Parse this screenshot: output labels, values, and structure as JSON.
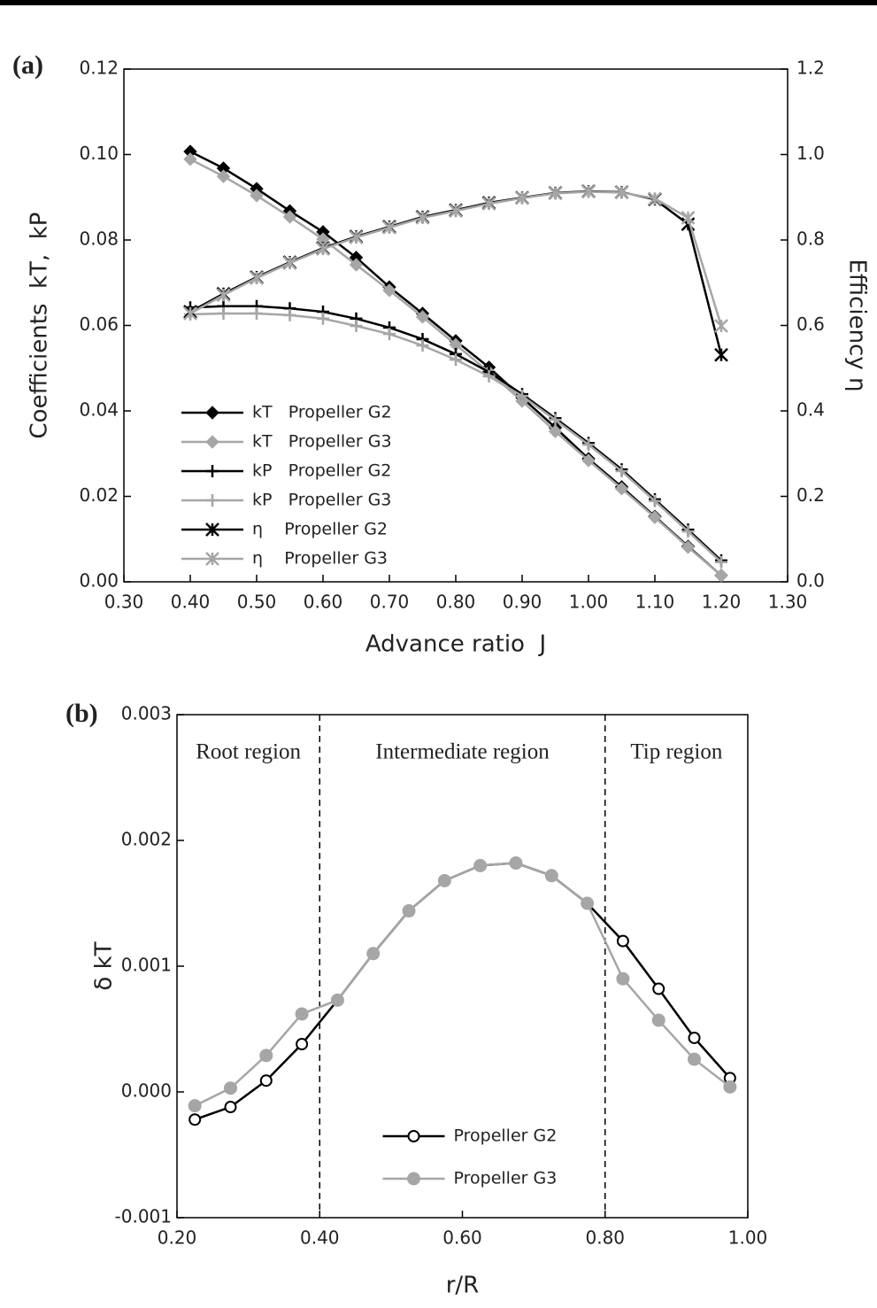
{
  "chart_data": [
    {
      "type": "line",
      "panel_label": "(a)",
      "x_label": "Advance ratio  J",
      "y_label": "Coefficients  kT,  kP",
      "y2_label": "Efficiency η",
      "x": [
        0.4,
        0.45,
        0.5,
        0.55,
        0.6,
        0.65,
        0.7,
        0.75,
        0.8,
        0.85,
        0.9,
        0.95,
        1.0,
        1.05,
        1.1,
        1.15,
        1.2
      ],
      "xlim": [
        0.3,
        1.3
      ],
      "xticks": [
        {
          "value": 0.3,
          "label": "0.30"
        },
        {
          "value": 0.4,
          "label": "0.40"
        },
        {
          "value": 0.5,
          "label": "0.50"
        },
        {
          "value": 0.6,
          "label": "0.60"
        },
        {
          "value": 0.7,
          "label": "0.70"
        },
        {
          "value": 0.8,
          "label": "0.80"
        },
        {
          "value": 0.9,
          "label": "0.90"
        },
        {
          "value": 1.0,
          "label": "1.00"
        },
        {
          "value": 1.1,
          "label": "1.10"
        },
        {
          "value": 1.2,
          "label": "1.20"
        },
        {
          "value": 1.3,
          "label": "1.30"
        }
      ],
      "ylim": [
        0,
        0.12
      ],
      "yticks": [
        {
          "value": 0,
          "label": "0.00"
        },
        0.02,
        0.04,
        0.06,
        0.08,
        {
          "value": 0.1,
          "label": "0.10"
        },
        0.12
      ],
      "y2lim": [
        0,
        1.2
      ],
      "y2ticks": [
        {
          "value": 0,
          "label": "0.0"
        },
        0.2,
        0.4,
        0.6,
        0.8,
        {
          "value": 1.0,
          "label": "1.0"
        },
        1.2
      ],
      "legend": "lower left",
      "series": [
        {
          "name": "kT   Propeller G2",
          "color": "#000000",
          "marker": "diamond",
          "values": [
            0.1007,
            0.0968,
            0.092,
            0.0868,
            0.0819,
            0.0759,
            0.069,
            0.0628,
            0.0564,
            0.0502,
            0.0431,
            0.0361,
            0.0288,
            0.0222,
            0.0153,
            0.0083,
            0.0015
          ]
        },
        {
          "name": "kT   Propeller G3",
          "color": "#a6a6a6",
          "marker": "diamond",
          "values": [
            0.0989,
            0.0949,
            0.0904,
            0.0854,
            0.0802,
            0.0742,
            0.0682,
            0.062,
            0.0555,
            0.0491,
            0.0423,
            0.0352,
            0.0284,
            0.0218,
            0.0151,
            0.0081,
            0.0015
          ]
        },
        {
          "name": "kP   Propeller G2",
          "color": "#000000",
          "marker": "plus",
          "values": [
            0.0642,
            0.0645,
            0.0645,
            0.064,
            0.0632,
            0.0616,
            0.0595,
            0.0568,
            0.0533,
            0.0491,
            0.0439,
            0.0383,
            0.0325,
            0.0263,
            0.0193,
            0.0122,
            0.005
          ]
        },
        {
          "name": "kP   Propeller G3",
          "color": "#a6a6a6",
          "marker": "plus",
          "values": [
            0.0626,
            0.0628,
            0.0628,
            0.0624,
            0.0616,
            0.0599,
            0.058,
            0.0553,
            0.052,
            0.0481,
            0.0435,
            0.0379,
            0.0321,
            0.0259,
            0.0189,
            0.0118,
            0.0046
          ]
        },
        {
          "name": "η    Propeller G2",
          "color": "#000000",
          "marker": "asterisk",
          "axis": "y2",
          "values": [
            0.632,
            0.674,
            0.713,
            0.748,
            0.781,
            0.808,
            0.831,
            0.854,
            0.87,
            0.887,
            0.899,
            0.91,
            0.914,
            0.912,
            0.895,
            0.837,
            0.531
          ]
        },
        {
          "name": "η    Propeller G3",
          "color": "#a6a6a6",
          "marker": "asterisk",
          "axis": "y2",
          "values": [
            0.628,
            0.671,
            0.711,
            0.746,
            0.779,
            0.806,
            0.829,
            0.852,
            0.868,
            0.885,
            0.898,
            0.909,
            0.913,
            0.911,
            0.897,
            0.852,
            0.599
          ]
        }
      ]
    },
    {
      "type": "line",
      "panel_label": "(b)",
      "x_label": "r/R",
      "y_label": "δ kT",
      "x": [
        0.225,
        0.275,
        0.325,
        0.375,
        0.425,
        0.475,
        0.525,
        0.575,
        0.625,
        0.675,
        0.725,
        0.775,
        0.825,
        0.875,
        0.925,
        0.975
      ],
      "xlim": [
        0.2,
        1.0
      ],
      "xticks": [
        {
          "value": 0.2,
          "label": "0.20"
        },
        {
          "value": 0.4,
          "label": "0.40"
        },
        {
          "value": 0.6,
          "label": "0.60"
        },
        {
          "value": 0.8,
          "label": "0.80"
        },
        {
          "value": 1.0,
          "label": "1.00"
        }
      ],
      "ylim": [
        -0.001,
        0.003
      ],
      "yticks": [
        -0.001,
        {
          "value": 0,
          "label": "0.000"
        },
        0.001,
        0.002,
        0.003
      ],
      "reference_lines": [
        0.4,
        0.8
      ],
      "region_labels": [
        "Root region",
        "Intermediate region",
        "Tip region"
      ],
      "legend": "lower center",
      "series": [
        {
          "name": "Propeller G2",
          "color": "#000000",
          "marker": "circle-open",
          "values": [
            -0.00022,
            -0.00012,
            9e-05,
            0.00038,
            0.00073,
            0.0011,
            0.00144,
            0.00168,
            0.0018,
            0.00182,
            0.00172,
            0.0015,
            0.0012,
            0.00082,
            0.00043,
            0.00011
          ]
        },
        {
          "name": "Propeller G3",
          "color": "#a6a6a6",
          "marker": "circle",
          "values": [
            -0.00011,
            3e-05,
            0.00029,
            0.00062,
            0.00073,
            0.0011,
            0.00144,
            0.00168,
            0.0018,
            0.00182,
            0.00172,
            0.0015,
            0.0009,
            0.00057,
            0.00026,
            4e-05
          ]
        }
      ]
    }
  ]
}
